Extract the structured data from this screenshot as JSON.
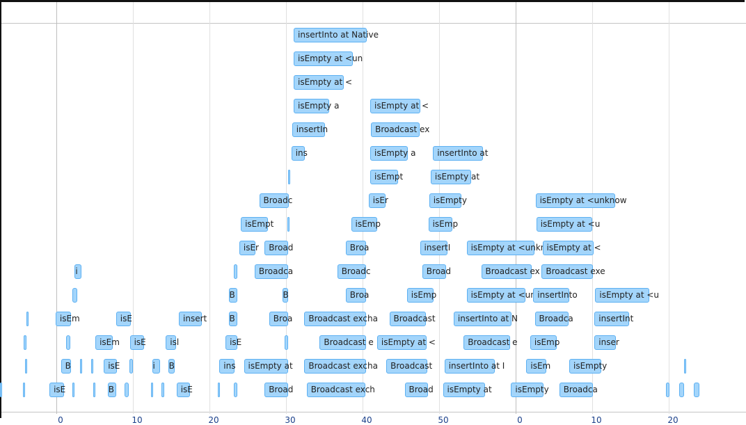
{
  "chart_data": {
    "type": "timeline",
    "x_unit": "seconds",
    "xlim": [
      -7.4,
      89.6
    ],
    "ticks": [
      {
        "t": 0,
        "label": "0",
        "major": true
      },
      {
        "t": 10,
        "label": "10",
        "major": false
      },
      {
        "t": 20,
        "label": "20",
        "major": false
      },
      {
        "t": 30,
        "label": "30",
        "major": false
      },
      {
        "t": 40,
        "label": "40",
        "major": false
      },
      {
        "t": 50,
        "label": "50",
        "major": false
      },
      {
        "t": 60,
        "label": "0",
        "major": true
      },
      {
        "t": 70,
        "label": "10",
        "major": false
      },
      {
        "t": 80,
        "label": "20",
        "major": false
      }
    ],
    "colors": {
      "item_fill": "#a3d5fb",
      "item_border": "#5cb0f2"
    },
    "rows": [
      [
        [
          "insertInto at Native",
          31.0,
          40.5
        ]
      ],
      [
        [
          "isEmpty at <un",
          31.0,
          38.7
        ]
      ],
      [
        [
          "isEmpty at <",
          31.0,
          37.5
        ]
      ],
      [
        [
          "isEmpty a",
          31.0,
          35.6
        ],
        [
          "isEmpty at <",
          41.0,
          47.5
        ]
      ],
      [
        [
          "insertIn",
          30.8,
          35.1
        ],
        [
          "Broadcast ex",
          41.1,
          47.5
        ]
      ],
      [
        [
          "ins",
          30.7,
          32.5
        ],
        [
          "isEmpty a",
          41.0,
          45.9
        ],
        [
          "insertInto at",
          49.2,
          55.7
        ]
      ],
      [
        [
          "",
          30.3,
          30.5
        ],
        [
          "isEmpt",
          41.0,
          44.6
        ],
        [
          "isEmpty at",
          48.9,
          54.2
        ]
      ],
      [
        [
          "Broadc",
          26.5,
          30.4
        ],
        [
          "isEr",
          40.8,
          43.0
        ],
        [
          "isEmpty",
          48.7,
          52.9
        ],
        [
          "isEmpty at <unknow",
          62.6,
          73.0
        ]
      ],
      [
        [
          "isEmpt",
          24.1,
          27.6
        ],
        [
          "",
          30.2,
          30.5
        ],
        [
          "isEmp",
          38.5,
          41.9
        ],
        [
          "isEmp",
          48.6,
          51.7
        ],
        [
          "isEmpty at <u",
          62.7,
          70.0
        ]
      ],
      [
        [
          "isEr",
          23.9,
          26.0
        ],
        [
          "Broad",
          27.2,
          30.3
        ],
        [
          "Broa",
          37.8,
          40.5
        ],
        [
          "insertI",
          47.5,
          51.1
        ],
        [
          "isEmpty at <unkn",
          53.6,
          62.5
        ],
        [
          "isEmpty at <",
          63.5,
          70.2
        ]
      ],
      [
        [
          "i",
          2.4,
          3.3
        ],
        [
          "",
          23.2,
          23.6
        ],
        [
          "Broadca",
          25.9,
          30.3
        ],
        [
          "Broadc",
          36.7,
          40.5
        ],
        [
          "Broad",
          47.8,
          50.9
        ],
        [
          "Broadcast ex",
          55.5,
          62.1
        ],
        [
          "Broadcast exe",
          63.4,
          70.1
        ]
      ],
      [
        [
          "",
          2.1,
          2.7
        ],
        [
          "B",
          22.5,
          23.6
        ],
        [
          "B",
          29.5,
          30.3
        ],
        [
          "Broa",
          37.8,
          40.5
        ],
        [
          "isEmp",
          45.8,
          49.3
        ],
        [
          "isEmpty at <un",
          53.6,
          61.3
        ],
        [
          "insertInto",
          62.3,
          67.0
        ],
        [
          "isEmpty at <u",
          70.4,
          77.5
        ]
      ],
      [
        [
          "",
          -3.9,
          -3.7
        ],
        [
          "isEm",
          -0.1,
          1.9
        ],
        [
          "isE",
          7.8,
          9.7
        ],
        [
          "insert",
          16.0,
          19.0
        ],
        [
          "B",
          22.5,
          23.6
        ],
        [
          "Broa",
          27.8,
          30.3
        ],
        [
          "Broadcast excha",
          32.4,
          40.5
        ],
        [
          "Broadcast",
          43.5,
          48.3
        ],
        [
          "insertInto at N",
          51.9,
          59.5
        ],
        [
          "Broadca",
          62.5,
          66.9
        ],
        [
          "insertInt",
          70.3,
          74.8
        ]
      ],
      [
        [
          "",
          -4.3,
          -3.9
        ],
        [
          "",
          1.3,
          1.8
        ],
        [
          "isEm",
          5.1,
          7.4
        ],
        [
          "isE",
          9.6,
          11.5
        ],
        [
          "isl",
          14.3,
          15.6
        ],
        [
          "isE",
          22.1,
          23.6
        ],
        [
          "",
          29.8,
          30.3
        ],
        [
          "Broadcast e",
          34.4,
          40.5
        ],
        [
          "isEmpty at <",
          41.9,
          48.4
        ],
        [
          "Broadcast e",
          53.2,
          59.3
        ],
        [
          "isEmp",
          61.9,
          65.4
        ],
        [
          "inser",
          70.3,
          73.1
        ]
      ],
      [
        [
          "",
          -4.1,
          -3.8
        ],
        [
          "B",
          0.6,
          1.9
        ],
        [
          "",
          3.1,
          3.3
        ],
        [
          "",
          4.5,
          4.8
        ],
        [
          "isE",
          6.2,
          7.9
        ],
        [
          "",
          9.5,
          10.0
        ],
        [
          "i",
          12.5,
          13.5
        ],
        [
          "B",
          14.6,
          15.5
        ],
        [
          "ins",
          21.3,
          23.3
        ],
        [
          "isEmpty at",
          24.5,
          30.3
        ],
        [
          "Broadcast excha",
          32.4,
          40.5
        ],
        [
          "Broadcast",
          43.1,
          48.5
        ],
        [
          "insertInto at I",
          50.7,
          57.3
        ],
        [
          "isEm",
          61.4,
          64.0
        ],
        [
          "isEmpty",
          67.0,
          71.2
        ],
        [
          "",
          82.0,
          82.3
        ]
      ],
      [
        [
          "",
          -7.4,
          -7.1
        ],
        [
          "",
          -4.4,
          -4.1
        ],
        [
          "isE",
          -0.9,
          1.0
        ],
        [
          "",
          2.1,
          2.4
        ],
        [
          "",
          4.8,
          5.1
        ],
        [
          "B",
          6.7,
          7.8
        ],
        [
          "",
          8.9,
          9.5
        ],
        [
          "",
          12.4,
          12.6
        ],
        [
          "",
          13.7,
          14.1
        ],
        [
          "isE",
          15.7,
          17.5
        ],
        [
          "",
          21.1,
          21.4
        ],
        [
          "",
          23.2,
          23.6
        ],
        [
          "Broad",
          27.2,
          30.3
        ],
        [
          "Broadcast exch",
          32.7,
          40.4
        ],
        [
          "Broad",
          45.5,
          48.5
        ],
        [
          "isEmpty at",
          50.5,
          56.0
        ],
        [
          "isEmpty",
          59.4,
          63.6
        ],
        [
          "Broadca",
          65.7,
          70.1
        ],
        [
          "",
          79.6,
          80.1
        ],
        [
          "",
          81.4,
          82.0
        ],
        [
          "",
          83.3,
          84.0
        ]
      ]
    ]
  }
}
